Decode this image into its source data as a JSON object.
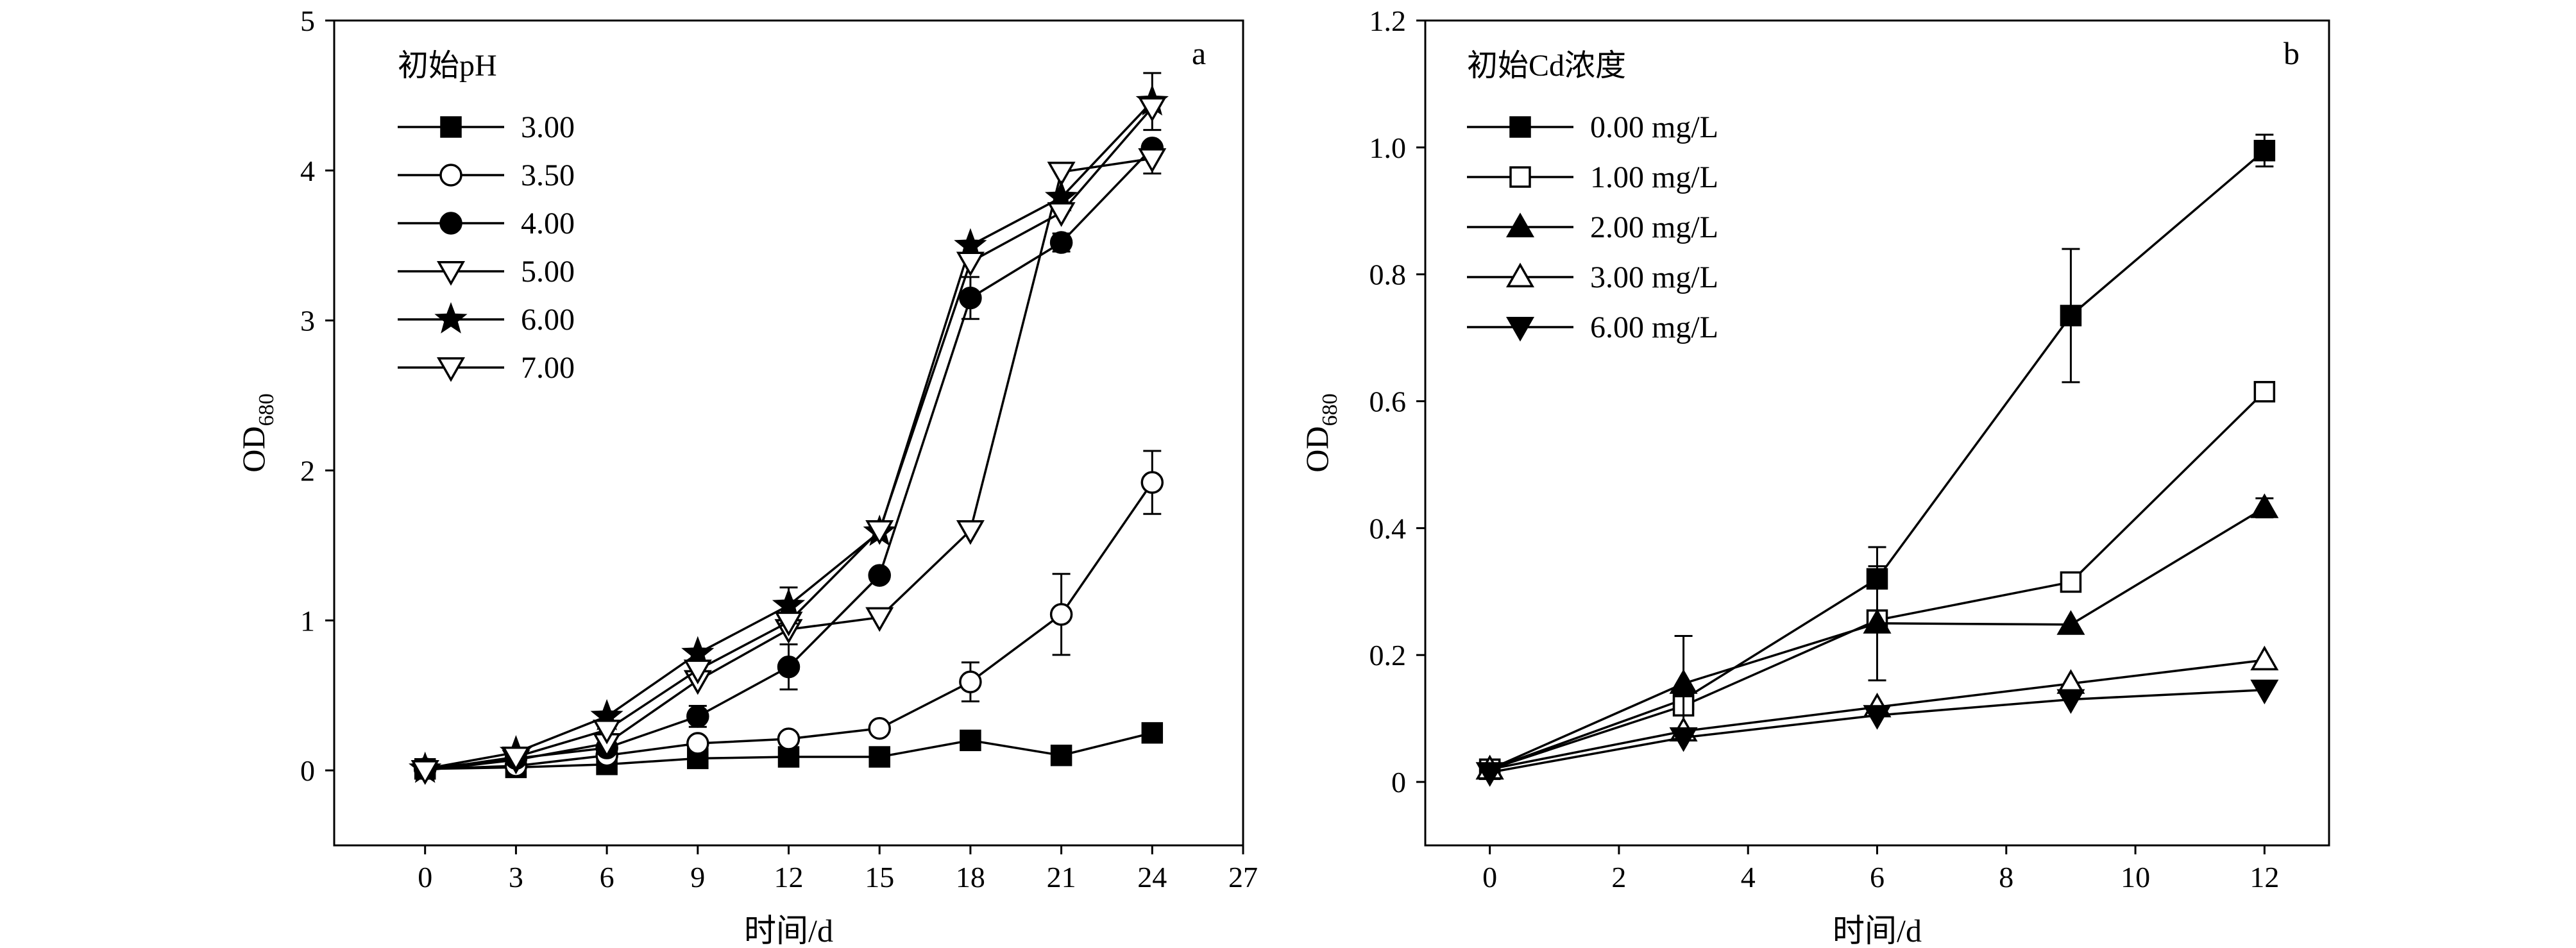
{
  "chart_data": [
    {
      "type": "line",
      "panel_label": "a",
      "xlabel": "时间/d",
      "ylabel_main": "OD",
      "ylabel_sub": "680",
      "xlim": [
        -3,
        27
      ],
      "ylim": [
        -0.5,
        5
      ],
      "xticks": [
        0,
        3,
        6,
        9,
        12,
        15,
        18,
        21,
        24,
        27
      ],
      "yticks": [
        0,
        1,
        2,
        3,
        4,
        5
      ],
      "legend_title": "初始pH",
      "legend_position": "top-left",
      "x": [
        0,
        3,
        6,
        9,
        12,
        15,
        18,
        21,
        24
      ],
      "series": [
        {
          "name": "3.00",
          "marker": "square-filled",
          "values": [
            0.01,
            0.02,
            0.04,
            0.08,
            0.09,
            0.09,
            0.2,
            0.1,
            0.25
          ],
          "errors": [
            0,
            0,
            0,
            0,
            0,
            0,
            0,
            0,
            0
          ]
        },
        {
          "name": "3.50",
          "marker": "circle-open",
          "values": [
            0.01,
            0.03,
            0.1,
            0.18,
            0.21,
            0.28,
            0.59,
            1.04,
            1.92
          ],
          "errors": [
            0,
            0,
            0,
            0,
            0,
            0,
            0.13,
            0.27,
            0.21
          ]
        },
        {
          "name": "4.00",
          "marker": "circle-filled",
          "values": [
            0.01,
            0.08,
            0.15,
            0.36,
            0.69,
            1.3,
            3.15,
            3.52,
            4.15
          ],
          "errors": [
            0,
            0,
            0,
            0.07,
            0.15,
            0,
            0.14,
            0.06,
            0
          ]
        },
        {
          "name": "5.00",
          "marker": "triangle-down-open",
          "values": [
            0.0,
            0.07,
            0.18,
            0.6,
            0.94,
            1.02,
            1.6,
            3.99,
            4.08
          ],
          "errors": [
            0,
            0,
            0,
            0,
            0,
            0,
            0,
            0,
            0.1
          ]
        },
        {
          "name": "6.00",
          "marker": "star-filled",
          "values": [
            0.01,
            0.12,
            0.36,
            0.78,
            1.1,
            1.59,
            3.5,
            3.82,
            4.46
          ],
          "errors": [
            0,
            0,
            0,
            0,
            0.12,
            0,
            0,
            0,
            0.19
          ]
        },
        {
          "name": "7.00",
          "marker": "triangle-down-open",
          "values": [
            0.0,
            0.09,
            0.27,
            0.67,
            0.99,
            1.6,
            3.39,
            3.72,
            4.42
          ],
          "errors": [
            0,
            0,
            0,
            0,
            0,
            0,
            0,
            0,
            0
          ]
        }
      ]
    },
    {
      "type": "line",
      "panel_label": "b",
      "xlabel": "时间/d",
      "ylabel_main": "OD",
      "ylabel_sub": "680",
      "xlim": [
        -1,
        13
      ],
      "ylim": [
        -0.1,
        1.2
      ],
      "xticks": [
        0,
        2,
        4,
        6,
        8,
        10,
        12
      ],
      "yticks": [
        0,
        0.2,
        0.4,
        0.6,
        0.8,
        1.0,
        1.2
      ],
      "ytick_labels": [
        "0",
        "0.2",
        "0.4",
        "0.6",
        "0.8",
        "1.0",
        "1.2"
      ],
      "legend_title": "初始Cd浓度",
      "legend_position": "top-left",
      "x": [
        0,
        3,
        6,
        9,
        12
      ],
      "series": [
        {
          "name": "0.00 mg/L",
          "marker": "square-filled",
          "values": [
            0.02,
            0.13,
            0.32,
            0.735,
            0.995
          ],
          "errors": [
            0,
            0,
            0.05,
            0.105,
            0.025
          ]
        },
        {
          "name": "1.00 mg/L",
          "marker": "square-open",
          "values": [
            0.02,
            0.12,
            0.255,
            0.315,
            0.615
          ],
          "errors": [
            0,
            0.01,
            0,
            0,
            0.01
          ]
        },
        {
          "name": "2.00 mg/L",
          "marker": "triangle-up-filled",
          "values": [
            0.02,
            0.155,
            0.25,
            0.248,
            0.432
          ],
          "errors": [
            0,
            0.075,
            0.09,
            0,
            0.015
          ]
        },
        {
          "name": "3.00 mg/L",
          "marker": "triangle-up-open",
          "values": [
            0.02,
            0.08,
            0.118,
            0.155,
            0.192
          ],
          "errors": [
            0,
            0,
            0,
            0,
            0
          ]
        },
        {
          "name": "6.00 mg/L",
          "marker": "triangle-down-filled",
          "values": [
            0.015,
            0.07,
            0.105,
            0.13,
            0.145
          ],
          "errors": [
            0,
            0,
            0,
            0,
            0
          ]
        }
      ]
    }
  ]
}
